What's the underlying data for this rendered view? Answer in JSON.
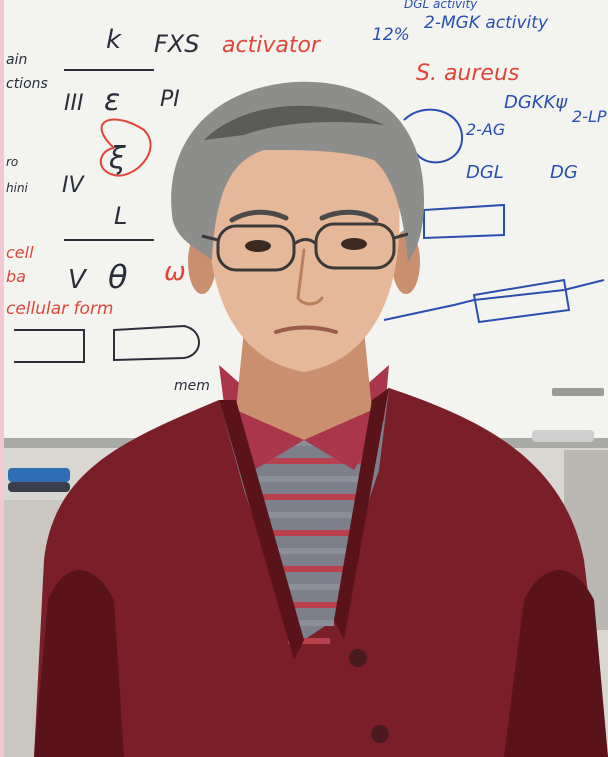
{
  "colors": {
    "edge_strip": "#f4c8d2",
    "wall": "#d9d7d1",
    "whiteboard": "#f3f3f0",
    "whiteboard_frame": "#a9aaa6",
    "marker_blue": "#2a4fb0",
    "marker_red": "#e0453a",
    "marker_dark": "#2b2f3a",
    "cardigan": "#7a1f27",
    "cardigan_shadow": "#5a1419",
    "skin": "#e6b89a",
    "skin_shadow": "#c98f6f",
    "hair": "#8d8d8b",
    "hair_dark": "#5b5b5a",
    "shirt_red": "#b8414d",
    "shirt_grey": "#8b8f9a"
  },
  "whiteboard": {
    "red_text": [
      {
        "text": "S. aureus"
      },
      {
        "text": "activator"
      },
      {
        "text": "cell"
      },
      {
        "text": "ba"
      },
      {
        "text": "cellular form"
      },
      {
        "text": "ω"
      }
    ],
    "blue_text": [
      {
        "text": "12%"
      },
      {
        "text": "2-MGK activity"
      },
      {
        "text": "DGKKψ"
      },
      {
        "text": "2-AG"
      },
      {
        "text": "2-LP"
      },
      {
        "text": "DGL"
      },
      {
        "text": "DG"
      },
      {
        "text": "DGL activity"
      }
    ],
    "dark_text": [
      {
        "text": "k"
      },
      {
        "text": "FXS"
      },
      {
        "text": "ain"
      },
      {
        "text": "ctions"
      },
      {
        "text": "III"
      },
      {
        "text": "ε"
      },
      {
        "text": "PI"
      },
      {
        "text": "ξ"
      },
      {
        "text": "IV"
      },
      {
        "text": "L"
      },
      {
        "text": "V"
      },
      {
        "text": "θ"
      },
      {
        "text": "mem"
      },
      {
        "text": "hini"
      },
      {
        "text": "ro"
      }
    ]
  }
}
